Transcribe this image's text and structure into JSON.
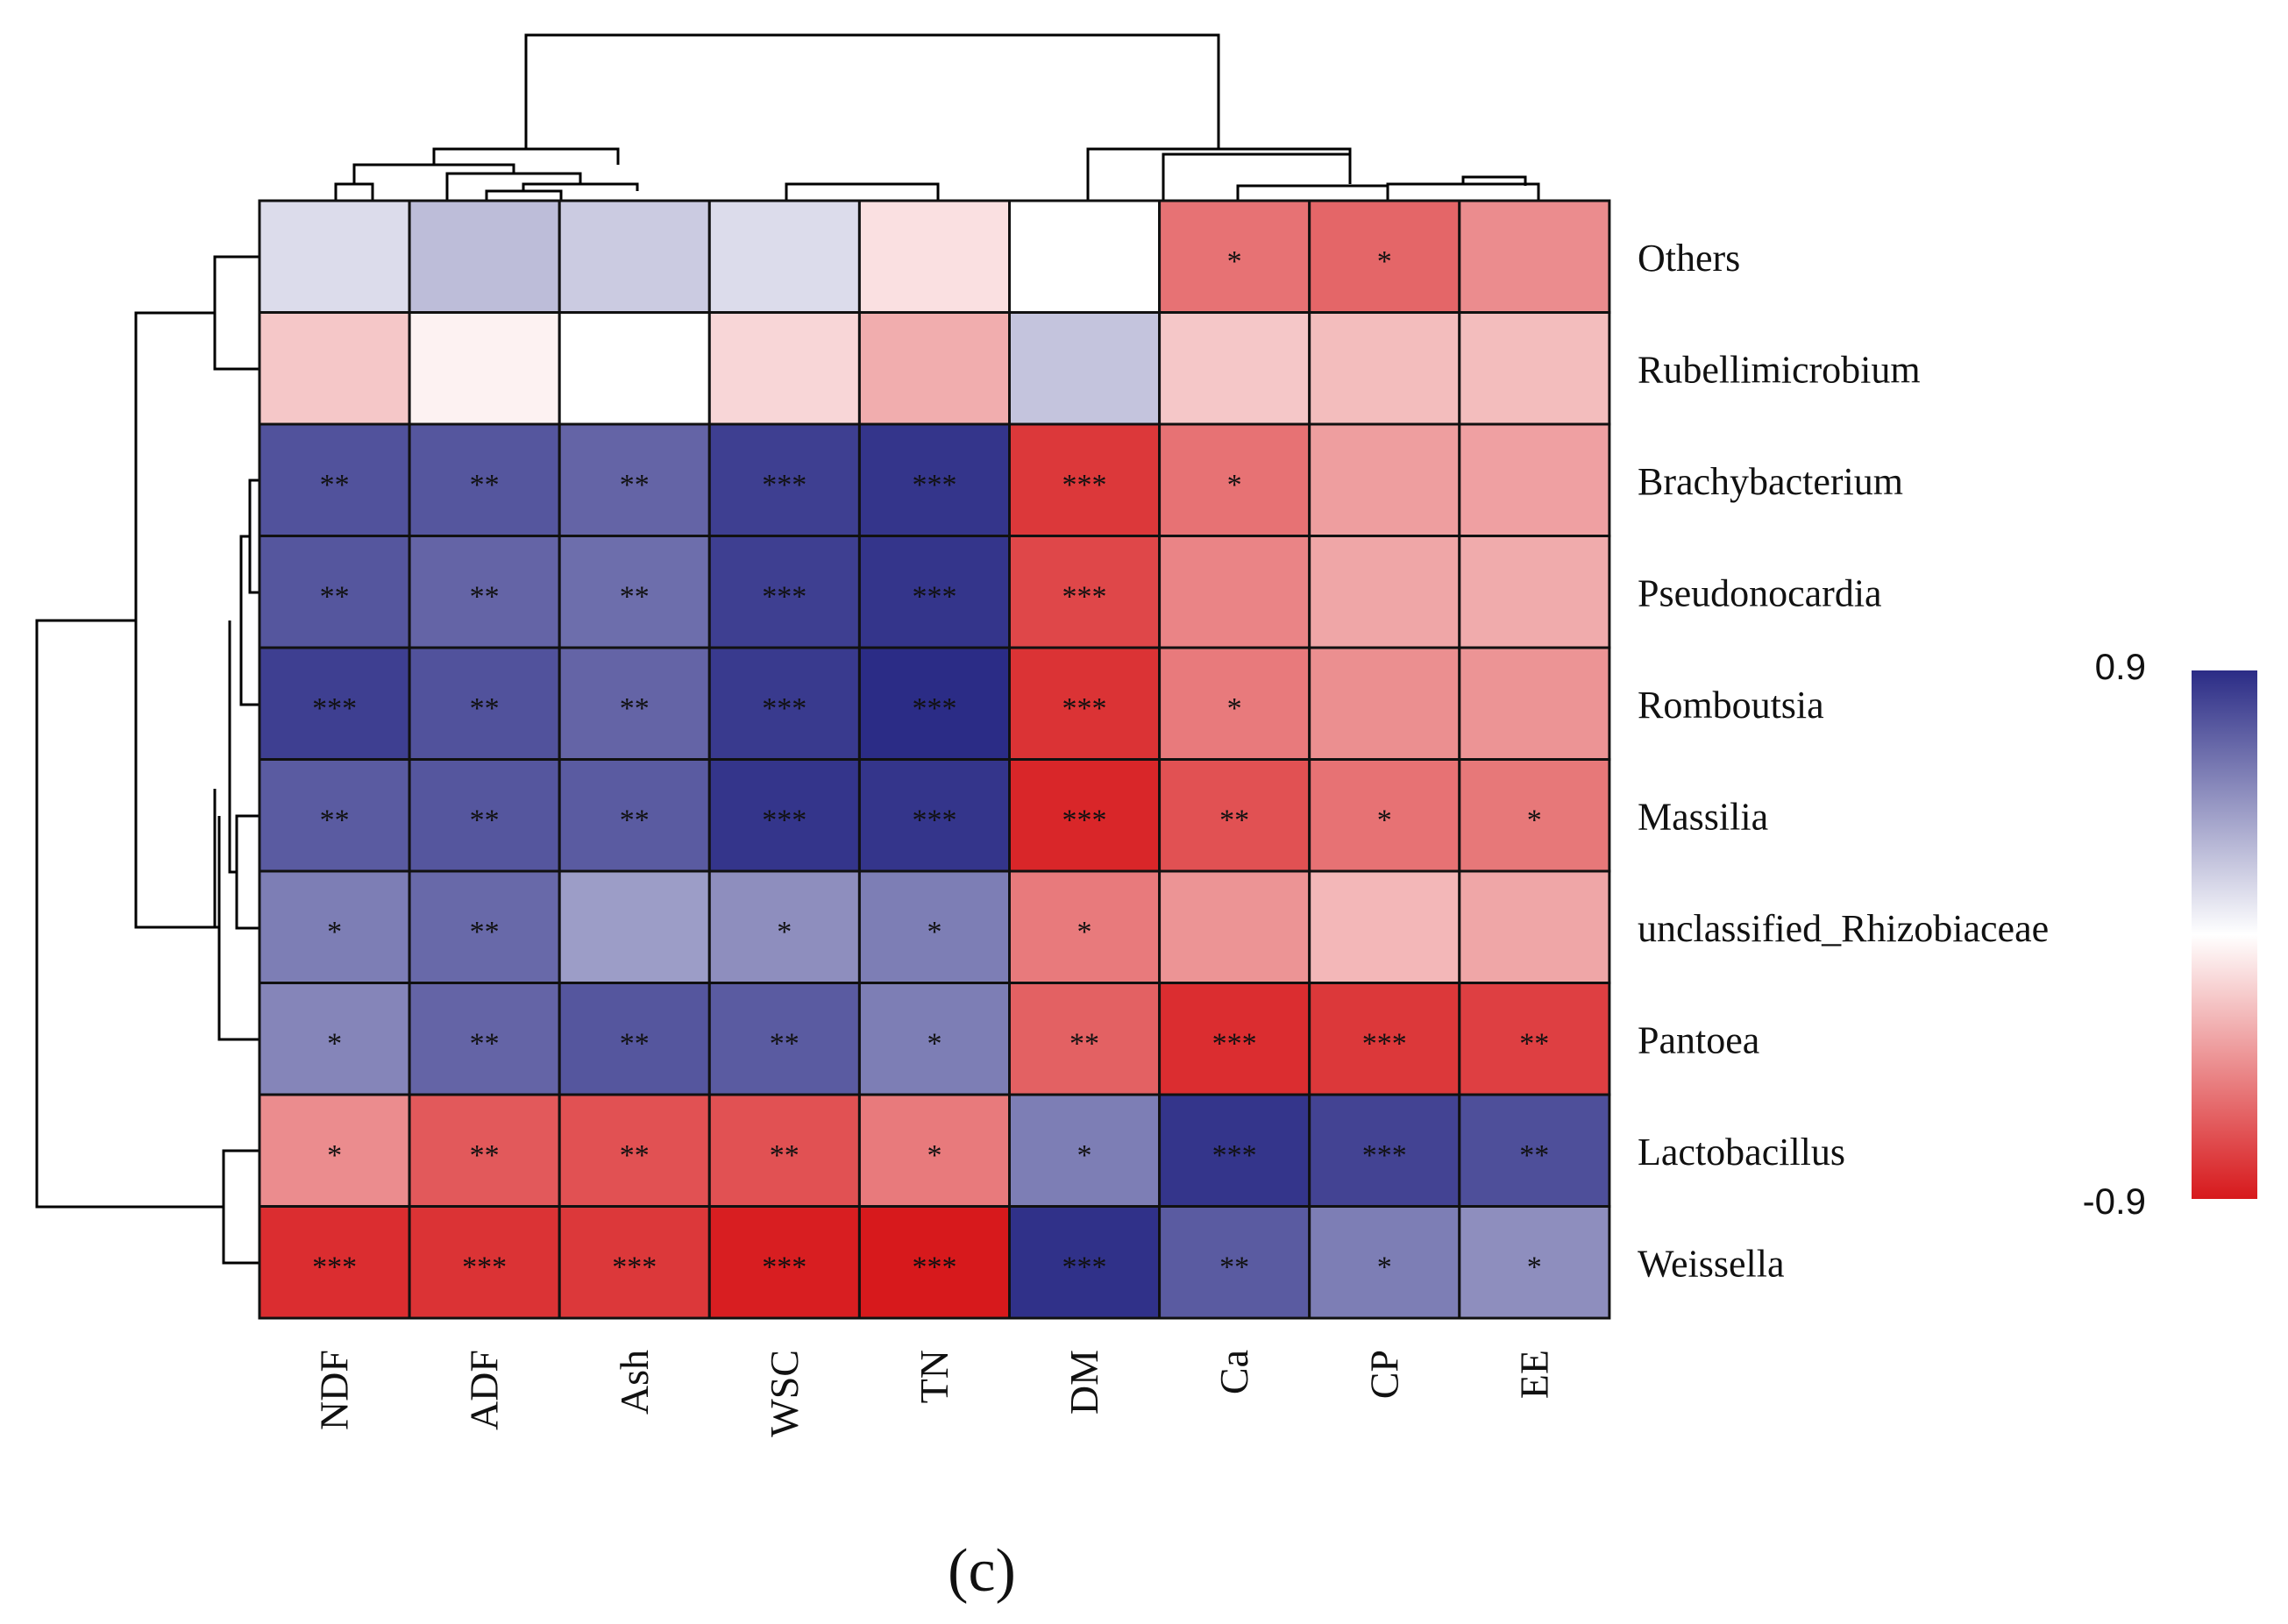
{
  "chart_data": {
    "type": "heatmap",
    "title": "",
    "caption": "(c)",
    "rows": [
      "Others",
      "Rubellimicrobium",
      "Brachybacterium",
      "Pseudonocardia",
      "Romboutsia",
      "Massilia",
      "unclassified_Rhizobiaceae",
      "Pantoea",
      "Lactobacillus",
      "Weissella"
    ],
    "columns": [
      "NDF",
      "ADF",
      "Ash",
      "WSC",
      "TN",
      "DM",
      "Ca",
      "CP",
      "EE"
    ],
    "values": [
      [
        0.15,
        0.28,
        0.22,
        0.15,
        -0.12,
        0.0,
        -0.55,
        -0.6,
        -0.45
      ],
      [
        -0.22,
        -0.05,
        0.0,
        -0.16,
        -0.32,
        0.25,
        -0.22,
        -0.26,
        -0.26
      ],
      [
        0.74,
        0.72,
        0.66,
        0.82,
        0.86,
        -0.78,
        -0.55,
        -0.38,
        -0.37
      ],
      [
        0.72,
        0.66,
        0.62,
        0.82,
        0.86,
        -0.72,
        -0.48,
        -0.35,
        -0.33
      ],
      [
        0.82,
        0.74,
        0.66,
        0.84,
        0.9,
        -0.8,
        -0.52,
        -0.44,
        -0.42
      ],
      [
        0.7,
        0.72,
        0.7,
        0.86,
        0.86,
        -0.85,
        -0.68,
        -0.55,
        -0.53
      ],
      [
        0.55,
        0.64,
        0.42,
        0.48,
        0.55,
        -0.52,
        -0.42,
        -0.28,
        -0.35
      ],
      [
        0.52,
        0.66,
        0.72,
        0.7,
        0.55,
        -0.62,
        -0.82,
        -0.78,
        -0.75
      ],
      [
        -0.45,
        -0.65,
        -0.68,
        -0.68,
        -0.52,
        0.55,
        0.86,
        0.8,
        0.75
      ],
      [
        -0.82,
        -0.8,
        -0.78,
        -0.88,
        -0.9,
        0.88,
        0.7,
        0.55,
        0.48
      ]
    ],
    "significance": [
      [
        "",
        "",
        "",
        "",
        "",
        "",
        "*",
        "*",
        ""
      ],
      [
        "",
        "",
        "",
        "",
        "",
        "",
        "",
        "",
        ""
      ],
      [
        "**",
        "**",
        "**",
        "***",
        "***",
        "***",
        "*",
        "",
        ""
      ],
      [
        "**",
        "**",
        "**",
        "***",
        "***",
        "***",
        "",
        "",
        ""
      ],
      [
        "***",
        "**",
        "**",
        "***",
        "***",
        "***",
        "*",
        "",
        ""
      ],
      [
        "**",
        "**",
        "**",
        "***",
        "***",
        "***",
        "**",
        "*",
        "*"
      ],
      [
        "*",
        "**",
        "",
        "*",
        "*",
        "*",
        "",
        "",
        ""
      ],
      [
        "*",
        "**",
        "**",
        "**",
        "*",
        "**",
        "***",
        "***",
        "**"
      ],
      [
        "*",
        "**",
        "**",
        "**",
        "*",
        "*",
        "***",
        "***",
        "**"
      ],
      [
        "***",
        "***",
        "***",
        "***",
        "***",
        "***",
        "**",
        "*",
        "*"
      ]
    ],
    "color_scale": {
      "min": -0.9,
      "max": 0.9,
      "min_label": "-0.9",
      "max_label": "0.9",
      "low_color": "#d7191c",
      "mid_color": "#ffffff",
      "high_color": "#2b2c86"
    },
    "legend_position": "right"
  }
}
